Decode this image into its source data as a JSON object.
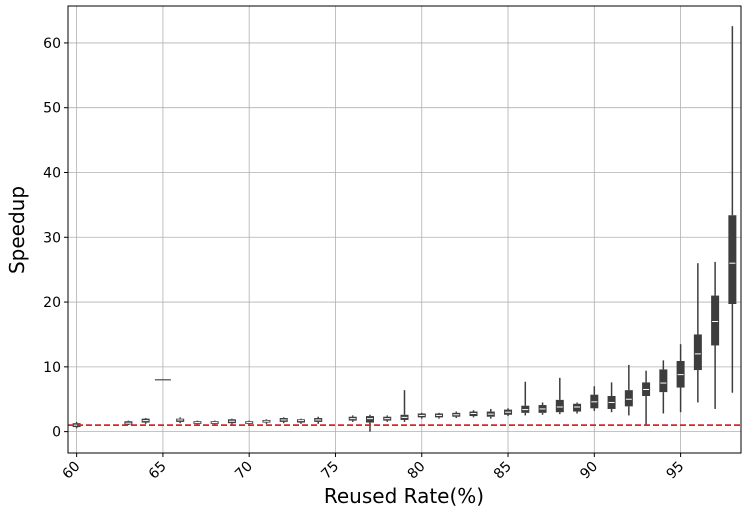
{
  "chart_data": {
    "type": "box",
    "x_label": "Reused Rate(%)",
    "y_label": "Speedup",
    "x": [
      60,
      63,
      64,
      65,
      66,
      67,
      68,
      69,
      70,
      71,
      72,
      73,
      74,
      76,
      77,
      78,
      79,
      80,
      81,
      82,
      83,
      84,
      85,
      86,
      87,
      88,
      89,
      90,
      91,
      92,
      93,
      94,
      95,
      96,
      97,
      98
    ],
    "whislo": [
      0.5,
      1.0,
      1.2,
      8,
      1.3,
      1.0,
      1.1,
      1.1,
      1.0,
      1.2,
      1.3,
      1.2,
      1.2,
      1.5,
      0,
      1.5,
      1.5,
      2.0,
      2.0,
      2.1,
      2.2,
      2.0,
      2.4,
      2.5,
      2.6,
      2.7,
      2.8,
      3.2,
      3.0,
      2.5,
      1.0,
      2.8,
      3.0,
      4.5,
      3.5,
      6
    ],
    "q1": [
      0.7,
      1.1,
      1.4,
      8,
      1.5,
      1.2,
      1.2,
      1.3,
      1.2,
      1.4,
      1.5,
      1.4,
      1.5,
      1.7,
      1.4,
      1.7,
      1.8,
      2.2,
      2.2,
      2.3,
      2.4,
      2.3,
      2.6,
      2.9,
      2.9,
      3.0,
      3.1,
      3.6,
      3.5,
      3.9,
      5.5,
      6.1,
      6.8,
      9.5,
      13.3,
      19.7
    ],
    "med": [
      1.0,
      1.3,
      1.7,
      8,
      1.8,
      1.4,
      1.4,
      1.6,
      1.4,
      1.6,
      1.8,
      1.7,
      1.8,
      2.0,
      2.0,
      2.0,
      2.2,
      2.5,
      2.5,
      2.6,
      2.8,
      2.7,
      3.0,
      3.4,
      3.5,
      3.8,
      3.8,
      4.6,
      4.5,
      5.0,
      6.5,
      7.5,
      8.8,
      12,
      17,
      26
    ],
    "q3": [
      1.3,
      1.6,
      2.0,
      8,
      2.0,
      1.6,
      1.6,
      1.9,
      1.6,
      1.8,
      2.1,
      1.9,
      2.1,
      2.3,
      2.4,
      2.3,
      2.6,
      2.8,
      2.8,
      2.9,
      3.1,
      3.1,
      3.4,
      4.0,
      4.1,
      4.9,
      4.3,
      5.7,
      5.5,
      6.4,
      7.6,
      9.6,
      10.9,
      15,
      21,
      33.4
    ],
    "whishi": [
      1.5,
      1.7,
      2.1,
      8,
      2.2,
      1.7,
      1.7,
      2.0,
      1.7,
      1.9,
      2.2,
      2.0,
      2.3,
      2.5,
      2.6,
      2.5,
      6.4,
      2.9,
      2.9,
      3.1,
      3.3,
      3.5,
      3.6,
      7.7,
      4.5,
      8.3,
      4.5,
      7.0,
      7.6,
      10.3,
      9.4,
      11.0,
      13.5,
      26,
      26.2,
      62.6
    ],
    "color": "#3d3d3d",
    "median_color": "#ffffff",
    "reference_line": {
      "value": 1,
      "color": "#d62728"
    },
    "xlim": [
      59.5,
      98.5
    ],
    "xticks": [
      60,
      65,
      70,
      75,
      80,
      85,
      90,
      95
    ],
    "ylim": [
      -3.3,
      65.7
    ],
    "yticks": [
      0,
      10,
      20,
      30,
      40,
      50,
      60
    ],
    "grid": true
  }
}
